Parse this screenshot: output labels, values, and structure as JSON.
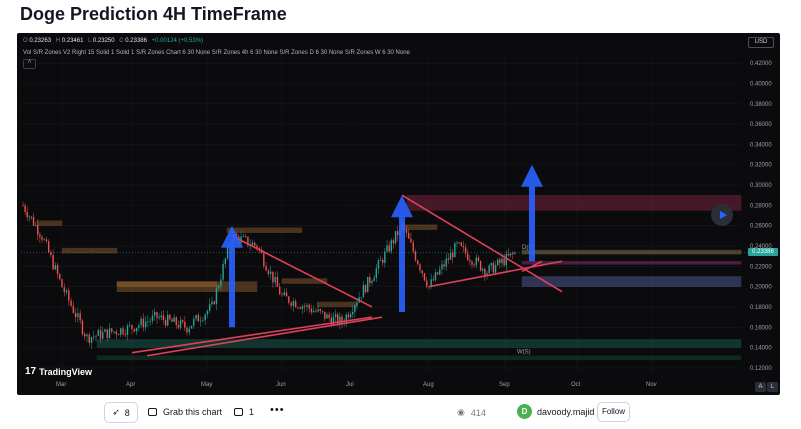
{
  "title": "Doge Prediction 4H TimeFrame",
  "ohlc": {
    "o_label": "O",
    "o": "0.23263",
    "h_label": "H",
    "h": "0.23461",
    "l_label": "L",
    "l": "0.23250",
    "c_label": "C",
    "c": "0.23386",
    "change": "+0.00124 (+0.53%)"
  },
  "indicator_text": "Vol S/R Zones V2 Right 15 Solid 1 Solid 1 S/R Zones Chart 6 30 None S/R Zones 4h 6 30 None S/R Zones D 6 30 None S/R Zones W 6 30 None",
  "collapse_icon": "^",
  "currency": "USD",
  "current_price": "0.23386",
  "price_axis": [
    "0.42000",
    "0.40000",
    "0.38000",
    "0.36000",
    "0.34000",
    "0.32000",
    "0.30000",
    "0.28000",
    "0.26000",
    "0.24000",
    "0.22000",
    "0.20000",
    "0.18000",
    "0.16000",
    "0.14000",
    "0.12000"
  ],
  "time_axis": [
    "Mar",
    "Apr",
    "May",
    "Jun",
    "Jul",
    "Aug",
    "Sep",
    "Oct",
    "Nov"
  ],
  "zone_labels": [
    "D(B)",
    "W(S)"
  ],
  "brand": {
    "logo_glyph": "17",
    "name": "TradingView"
  },
  "corner_buttons": [
    "A",
    "L"
  ],
  "footer": {
    "boost_count": "8",
    "grab_label": "Grab this chart",
    "comment_count": "1",
    "more_label": "•••",
    "views": "414",
    "username": "davoody.majid",
    "avatar_letter": "D",
    "follow_label": "Follow"
  },
  "icons": {
    "boost": "rocket-icon",
    "grab": "chart-grab-icon",
    "comments": "comment-icon",
    "views": "eye-icon",
    "play": "play-icon"
  },
  "colors": {
    "chart_bg": "#0b0b0d",
    "up_candle": "#26a69a",
    "down_candle": "#ef5350",
    "trendline": "#e0405a",
    "arrow": "#2962ff",
    "price_tag": "#26a69a"
  },
  "chart_data": {
    "type": "candlestick",
    "title": "",
    "y_axis_side": "right",
    "ylim": [
      0.115,
      0.43
    ],
    "x_ticks": [
      "Mar",
      "Apr",
      "May",
      "Jun",
      "Jul",
      "Aug",
      "Sep",
      "Oct",
      "Nov"
    ],
    "price_path": [
      {
        "m": "Feb-end",
        "p": 0.28
      },
      {
        "m": "Mar-early",
        "p": 0.25
      },
      {
        "m": "Mar-mid",
        "p": 0.2
      },
      {
        "m": "Mar-late",
        "p": 0.15
      },
      {
        "m": "Apr-early",
        "p": 0.16
      },
      {
        "m": "Apr-mid",
        "p": 0.17
      },
      {
        "m": "Apr-late",
        "p": 0.16
      },
      {
        "m": "May-early",
        "p": 0.18
      },
      {
        "m": "May-mid",
        "p": 0.25
      },
      {
        "m": "May-late",
        "p": 0.24
      },
      {
        "m": "Jun-early",
        "p": 0.19
      },
      {
        "m": "Jun-mid",
        "p": 0.18
      },
      {
        "m": "Jun-late",
        "p": 0.17
      },
      {
        "m": "Jul-early",
        "p": 0.165
      },
      {
        "m": "Jul-mid",
        "p": 0.21
      },
      {
        "m": "Jul-late",
        "p": 0.26
      },
      {
        "m": "Aug-early",
        "p": 0.2
      },
      {
        "m": "Aug-mid",
        "p": 0.24
      },
      {
        "m": "Aug-late",
        "p": 0.215
      },
      {
        "m": "Sep-early",
        "p": 0.2339
      }
    ],
    "trendlines": [
      {
        "from": [
          "May-mid",
          0.25
        ],
        "to": [
          "Jul-mid",
          0.18
        ]
      },
      {
        "from": [
          "Apr-early",
          0.135
        ],
        "to": [
          "Jul-mid",
          0.17
        ]
      },
      {
        "from": [
          "Jul-late",
          0.29
        ],
        "to": [
          "Sep-mid",
          0.195
        ]
      },
      {
        "from": [
          "Aug-early",
          0.2
        ],
        "to": [
          "Sep-mid",
          0.225
        ]
      }
    ],
    "arrows": [
      {
        "at": "May-mid",
        "from": 0.16,
        "to": 0.26
      },
      {
        "at": "Jul-late",
        "from": 0.175,
        "to": 0.29
      },
      {
        "at": "Sep-early",
        "from": 0.225,
        "to": 0.32
      }
    ],
    "zones": [
      {
        "price_low": 0.275,
        "price_high": 0.29,
        "color": "#b0305a"
      },
      {
        "price_low": 0.232,
        "price_high": 0.236,
        "color": "#c8a060"
      },
      {
        "price_low": 0.222,
        "price_high": 0.225,
        "color": "#c040a0"
      },
      {
        "price_low": 0.2,
        "price_high": 0.21,
        "color": "#7080d0"
      },
      {
        "price_low": 0.14,
        "price_high": 0.148,
        "color": "#208070"
      },
      {
        "price_low": 0.128,
        "price_high": 0.132,
        "color": "#206040"
      },
      {
        "price_low": 0.195,
        "price_high": 0.205,
        "color": "#c08040"
      }
    ]
  }
}
